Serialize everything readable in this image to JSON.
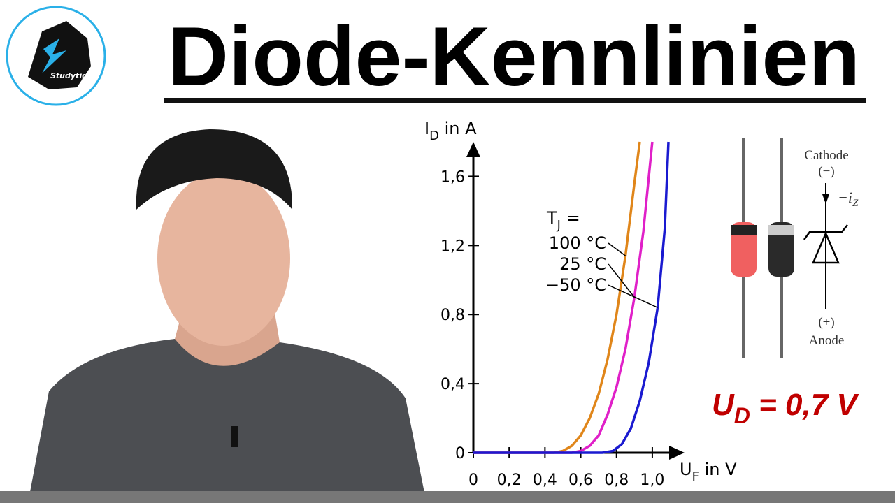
{
  "header": {
    "title": "Diode-Kennlinien",
    "logo_text": "Studytiger"
  },
  "chart_data": {
    "type": "line",
    "ylabel": [
      "I",
      "D",
      " in A"
    ],
    "xlabel": [
      "U",
      "F",
      " in V"
    ],
    "legend_title": [
      "T",
      "J",
      " ="
    ],
    "xlim": [
      0,
      1.18
    ],
    "ylim": [
      0,
      1.8
    ],
    "xticks": [
      0,
      {
        "value": 0.2,
        "label": "0,2"
      },
      {
        "value": 0.4,
        "label": "0,4"
      },
      {
        "value": 0.6,
        "label": "0,6"
      },
      {
        "value": 0.8,
        "label": "0,8"
      },
      {
        "value": 1.0,
        "label": "1,0"
      }
    ],
    "yticks": [
      0,
      {
        "value": 0.4,
        "label": "0,4"
      },
      {
        "value": 0.8,
        "label": "0,8"
      },
      {
        "value": 1.2,
        "label": "1,2"
      },
      {
        "value": 1.6,
        "label": "1,6"
      }
    ],
    "series": [
      {
        "name": "100 °C",
        "color": "#e0861a",
        "x": [
          0,
          0.45,
          0.5,
          0.55,
          0.6,
          0.65,
          0.7,
          0.75,
          0.8,
          0.85,
          0.9,
          0.93
        ],
        "values": [
          0,
          0,
          0.01,
          0.04,
          0.1,
          0.2,
          0.34,
          0.54,
          0.8,
          1.14,
          1.56,
          1.8
        ]
      },
      {
        "name": "25 °C",
        "color": "#e020c8",
        "x": [
          0,
          0.55,
          0.6,
          0.65,
          0.7,
          0.75,
          0.8,
          0.85,
          0.9,
          0.95,
          1.0
        ],
        "values": [
          0,
          0,
          0.01,
          0.04,
          0.1,
          0.22,
          0.38,
          0.6,
          0.9,
          1.28,
          1.8
        ]
      },
      {
        "name": "−50 °C",
        "color": "#1a1ad0",
        "x": [
          0,
          0.72,
          0.78,
          0.83,
          0.88,
          0.93,
          0.98,
          1.03,
          1.07,
          1.09
        ],
        "values": [
          0,
          0,
          0.01,
          0.05,
          0.14,
          0.3,
          0.52,
          0.84,
          1.3,
          1.8
        ]
      }
    ]
  },
  "diode": {
    "cathode": "Cathode",
    "cathode_sign": "(−)",
    "current": [
      "−i",
      "Z"
    ],
    "anode_sign": "(+)",
    "anode": "Anode"
  },
  "formula": [
    "U",
    "D",
    " = 0,7 V"
  ]
}
